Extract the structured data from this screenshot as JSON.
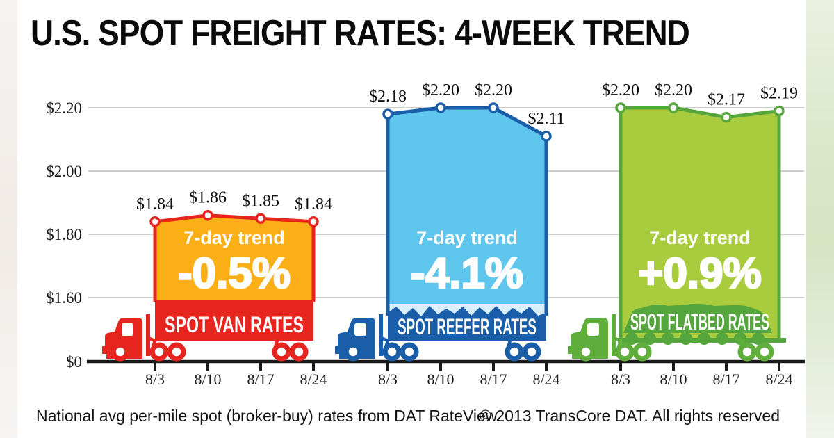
{
  "title": "U.S. SPOT FREIGHT RATES: 4-WEEK TREND",
  "footer": {
    "source": "National avg per-mile spot (broker-buy) rates from DAT RateView.",
    "copyright": "© 2013 TransCore DAT. All rights reserved"
  },
  "chart_data": {
    "type": "line",
    "title": "U.S. SPOT FREIGHT RATES: 4-WEEK TREND",
    "categories": [
      "8/3",
      "8/10",
      "8/17",
      "8/24"
    ],
    "categories_repeat_for_each_series": true,
    "grid": true,
    "legend": false,
    "y_axis": {
      "broken_axis": true,
      "ylim": [
        1.55,
        2.28
      ],
      "ticks": [
        {
          "label": "$2.20",
          "value": 2.2
        },
        {
          "label": "$2.00",
          "value": 2.0
        },
        {
          "label": "$1.80",
          "value": 1.8
        },
        {
          "label": "$1.60",
          "value": 1.6
        },
        {
          "label": "$0",
          "value": 0
        }
      ]
    },
    "series": [
      {
        "name": "SPOT VAN RATES",
        "slug": "spot-van-rates",
        "trend_label": "7-day trend",
        "trend": "-0.5%",
        "values": [
          1.84,
          1.86,
          1.85,
          1.84
        ],
        "value_labels": [
          "$1.84",
          "$1.86",
          "$1.85",
          "$1.84"
        ],
        "band_style": "solid",
        "colors": {
          "fill": "#F9AF15",
          "line": "#E6251F",
          "band": "#E6251F",
          "cab": "#E6251F"
        }
      },
      {
        "name": "SPOT REEFER RATES",
        "slug": "spot-reefer-rates",
        "trend_label": "7-day trend",
        "trend": "-4.1%",
        "values": [
          2.18,
          2.2,
          2.2,
          2.11
        ],
        "value_labels": [
          "$2.18",
          "$2.20",
          "$2.20",
          "$2.11"
        ],
        "band_style": "wave",
        "colors": {
          "fill": "#5EC5EC",
          "line": "#1A5DA8",
          "band": "#1A5DA8",
          "cab": "#1A5DA8",
          "accent": "#D8EEF9"
        }
      },
      {
        "name": "SPOT FLATBED RATES",
        "slug": "spot-flatbed-rates",
        "trend_label": "7-day trend",
        "trend": "+0.9%",
        "values": [
          2.2,
          2.2,
          2.17,
          2.19
        ],
        "value_labels": [
          "$2.20",
          "$2.20",
          "$2.17",
          "$2.19"
        ],
        "band_style": "tarp",
        "colors": {
          "fill": "#A9CC3E",
          "line": "#55A63C",
          "band": "#55A63C",
          "cab": "#5FAE3B"
        }
      }
    ]
  }
}
